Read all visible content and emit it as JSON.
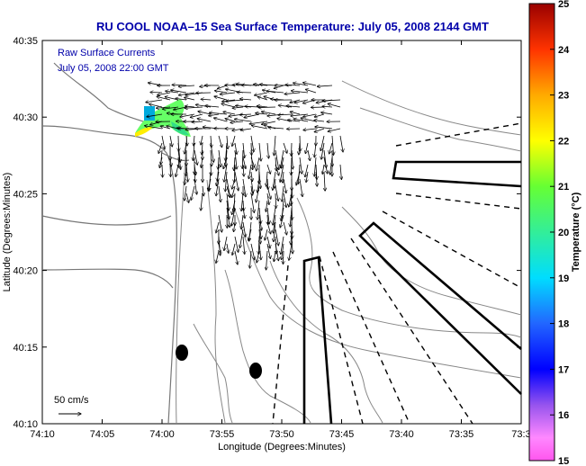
{
  "title": "RU COOL  NOAA–15  Sea Surface Temperature:  July 05, 2008 2144 GMT",
  "annotation": {
    "line1": "Raw Surface Currents",
    "line2": "July 05, 2008 22:00 GMT"
  },
  "scale_label": "50 cm/s",
  "axes": {
    "xlabel": "Longitude (Degrees:Minutes)",
    "ylabel": "Latitude (Degrees:Minutes)",
    "x_ticks": [
      "74:10",
      "74:05",
      "74:00",
      "73:55",
      "73:50",
      "73:45",
      "73:40",
      "73:35",
      "73:3"
    ],
    "y_ticks": [
      "40:35",
      "40:30",
      "40:25",
      "40:20",
      "40:15",
      "40:10"
    ]
  },
  "colorbar": {
    "label": "Temperature (°C)",
    "ticks": [
      "25",
      "24",
      "23",
      "22",
      "21",
      "20",
      "19",
      "18",
      "17",
      "16",
      "15"
    ],
    "range": [
      15,
      25
    ]
  },
  "colors": {
    "title": "#0000aa",
    "vectors": "#000000",
    "contours": "#888888"
  }
}
